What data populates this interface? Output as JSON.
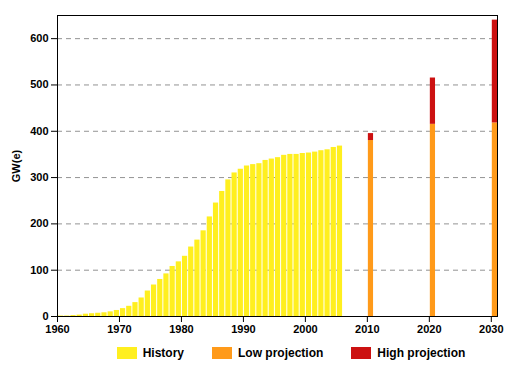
{
  "chart_data": {
    "type": "bar",
    "stacked": true,
    "grid": true,
    "legend": "bottom",
    "y_label": "GW(e)",
    "x": [
      1960,
      1961,
      1962,
      1963,
      1964,
      1965,
      1966,
      1967,
      1968,
      1969,
      1970,
      1971,
      1972,
      1973,
      1974,
      1975,
      1976,
      1977,
      1978,
      1979,
      1980,
      1981,
      1982,
      1983,
      1984,
      1985,
      1986,
      1987,
      1988,
      1989,
      1990,
      1991,
      1992,
      1993,
      1994,
      1995,
      1996,
      1997,
      1998,
      1999,
      2000,
      2001,
      2002,
      2003,
      2004,
      2005,
      2010,
      2020,
      2030
    ],
    "series": [
      {
        "name": "History",
        "color": "#ffef1f",
        "values": [
          1,
          1,
          2,
          3,
          5,
          6,
          7,
          8,
          10,
          13,
          17,
          22,
          30,
          40,
          55,
          68,
          80,
          92,
          108,
          118,
          130,
          150,
          165,
          185,
          215,
          245,
          270,
          295,
          310,
          318,
          325,
          328,
          330,
          337,
          340,
          343,
          348,
          350,
          350,
          352,
          353,
          355,
          358,
          360,
          365,
          368,
          null,
          null,
          null
        ]
      },
      {
        "name": "Low projection",
        "color": "#ff9a1a",
        "values": [
          null,
          null,
          null,
          null,
          null,
          null,
          null,
          null,
          null,
          null,
          null,
          null,
          null,
          null,
          null,
          null,
          null,
          null,
          null,
          null,
          null,
          null,
          null,
          null,
          null,
          null,
          null,
          null,
          null,
          null,
          null,
          null,
          null,
          null,
          null,
          null,
          null,
          null,
          null,
          null,
          null,
          null,
          null,
          null,
          null,
          null,
          380,
          415,
          418
        ]
      },
      {
        "name": "High projection",
        "color": "#cc1111",
        "values": [
          null,
          null,
          null,
          null,
          null,
          null,
          null,
          null,
          null,
          null,
          null,
          null,
          null,
          null,
          null,
          null,
          null,
          null,
          null,
          null,
          null,
          null,
          null,
          null,
          null,
          null,
          null,
          null,
          null,
          null,
          null,
          null,
          null,
          null,
          null,
          null,
          null,
          null,
          null,
          null,
          null,
          null,
          null,
          null,
          null,
          null,
          15,
          100,
          222
        ]
      }
    ],
    "xlim": [
      1960,
      2031
    ],
    "xticks": [
      1960,
      1970,
      1980,
      1990,
      2000,
      2010,
      2020,
      2030
    ],
    "ylim": [
      0,
      650
    ],
    "yticks": [
      0,
      100,
      200,
      300,
      400,
      500,
      600
    ]
  }
}
